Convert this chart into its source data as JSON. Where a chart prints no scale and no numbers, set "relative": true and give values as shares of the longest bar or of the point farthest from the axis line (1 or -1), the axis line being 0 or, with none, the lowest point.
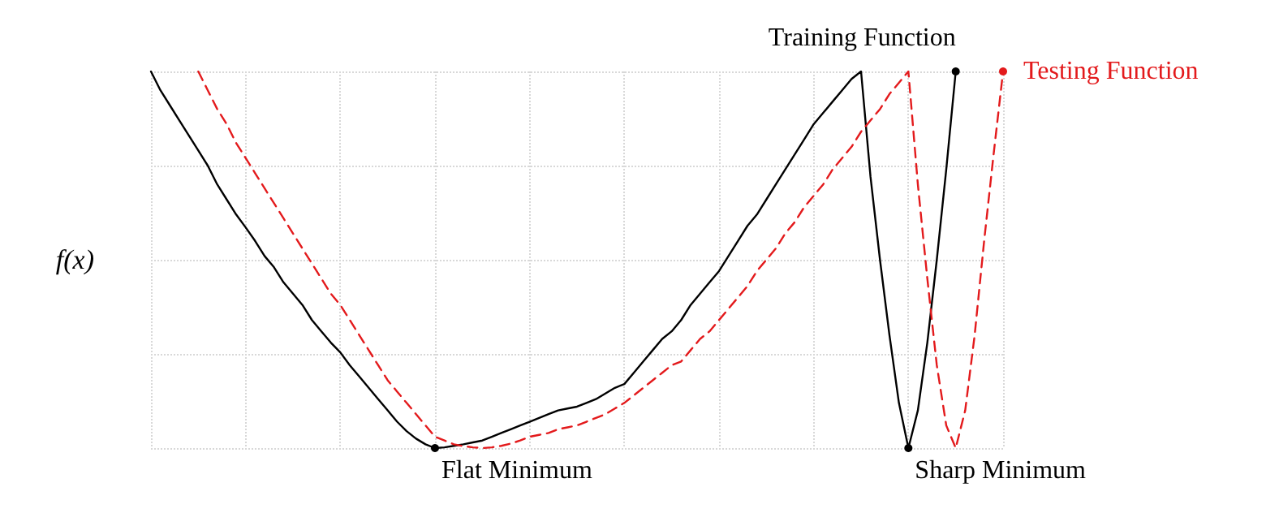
{
  "chart_data": {
    "type": "line",
    "relative": true,
    "ylabel": "f(x)",
    "grid": true,
    "legend": false,
    "marker": "none",
    "annotations": [
      "Flat Minimum",
      "Sharp Minimum"
    ],
    "categories": [
      null,
      null,
      null,
      null,
      null,
      null,
      null,
      null,
      null,
      null,
      null,
      null,
      null,
      null,
      null,
      null,
      null,
      null,
      null,
      null,
      null,
      null,
      null,
      null,
      null,
      null,
      null,
      null,
      null,
      null,
      null,
      null,
      null,
      null,
      null,
      null,
      null,
      null,
      null,
      null,
      null,
      null,
      null,
      null,
      null,
      null,
      null,
      null,
      null,
      null,
      null,
      null,
      null,
      null,
      null,
      null,
      null,
      null,
      null,
      null,
      null,
      null,
      null,
      null,
      null,
      null,
      null,
      null,
      null,
      null,
      null,
      null,
      null,
      null,
      null,
      null,
      null,
      null,
      null,
      null,
      null,
      null,
      null,
      null,
      null,
      null,
      null,
      null,
      null,
      null,
      null
    ],
    "series": [
      {
        "name": "Training Function",
        "color": "#000000",
        "line_style": "solid",
        "values": [
          1.0,
          0.95,
          0.91,
          0.87,
          0.83,
          0.79,
          0.75,
          0.7,
          0.66,
          0.62,
          0.586,
          0.55,
          0.51,
          0.48,
          0.44,
          0.41,
          0.38,
          0.34,
          0.31,
          0.28,
          0.254,
          0.22,
          0.19,
          0.16,
          0.13,
          0.1,
          0.07,
          0.045,
          0.025,
          0.01,
          0,
          0.002,
          0.006,
          0.01,
          0.015,
          0.02,
          0.03,
          0.04,
          0.05,
          0.06,
          0.07,
          0.08,
          0.09,
          0.1,
          0.105,
          0.11,
          0.12,
          0.13,
          0.145,
          0.16,
          0.17,
          0.2,
          0.23,
          0.26,
          0.29,
          0.31,
          0.34,
          0.38,
          0.41,
          0.44,
          0.47,
          0.51,
          0.55,
          0.59,
          0.62,
          0.66,
          0.7,
          0.74,
          0.78,
          0.82,
          0.86,
          0.89,
          0.92,
          0.95,
          0.98,
          1,
          0.72,
          0.5,
          0.3,
          0.12,
          0,
          0.1,
          0.28,
          0.5,
          0.74,
          1,
          null,
          null,
          null,
          null,
          null
        ]
      },
      {
        "name": "Testing Function",
        "color": "#e31a1c",
        "line_style": "dashed",
        "values": [
          null,
          null,
          null,
          null,
          null,
          1.0,
          0.95,
          0.9,
          0.86,
          0.81,
          0.77,
          0.73,
          0.69,
          0.65,
          0.61,
          0.57,
          0.53,
          0.49,
          0.45,
          0.41,
          0.38,
          0.34,
          0.3,
          0.26,
          0.22,
          0.18,
          0.15,
          0.12,
          0.09,
          0.06,
          0.03,
          0.02,
          0.01,
          0.005,
          0.002,
          0,
          0.002,
          0.006,
          0.012,
          0.02,
          0.03,
          0.035,
          0.04,
          0.05,
          0.055,
          0.06,
          0.07,
          0.08,
          0.09,
          0.105,
          0.12,
          0.14,
          0.16,
          0.18,
          0.2,
          0.22,
          0.23,
          0.26,
          0.29,
          0.31,
          0.34,
          0.37,
          0.4,
          0.43,
          0.47,
          0.5,
          0.53,
          0.57,
          0.6,
          0.64,
          0.67,
          0.7,
          0.74,
          0.77,
          0.8,
          0.84,
          0.87,
          0.9,
          0.94,
          0.97,
          1,
          0.7,
          0.45,
          0.22,
          0.06,
          0,
          0.1,
          0.3,
          0.55,
          0.78,
          1
        ]
      }
    ]
  }
}
